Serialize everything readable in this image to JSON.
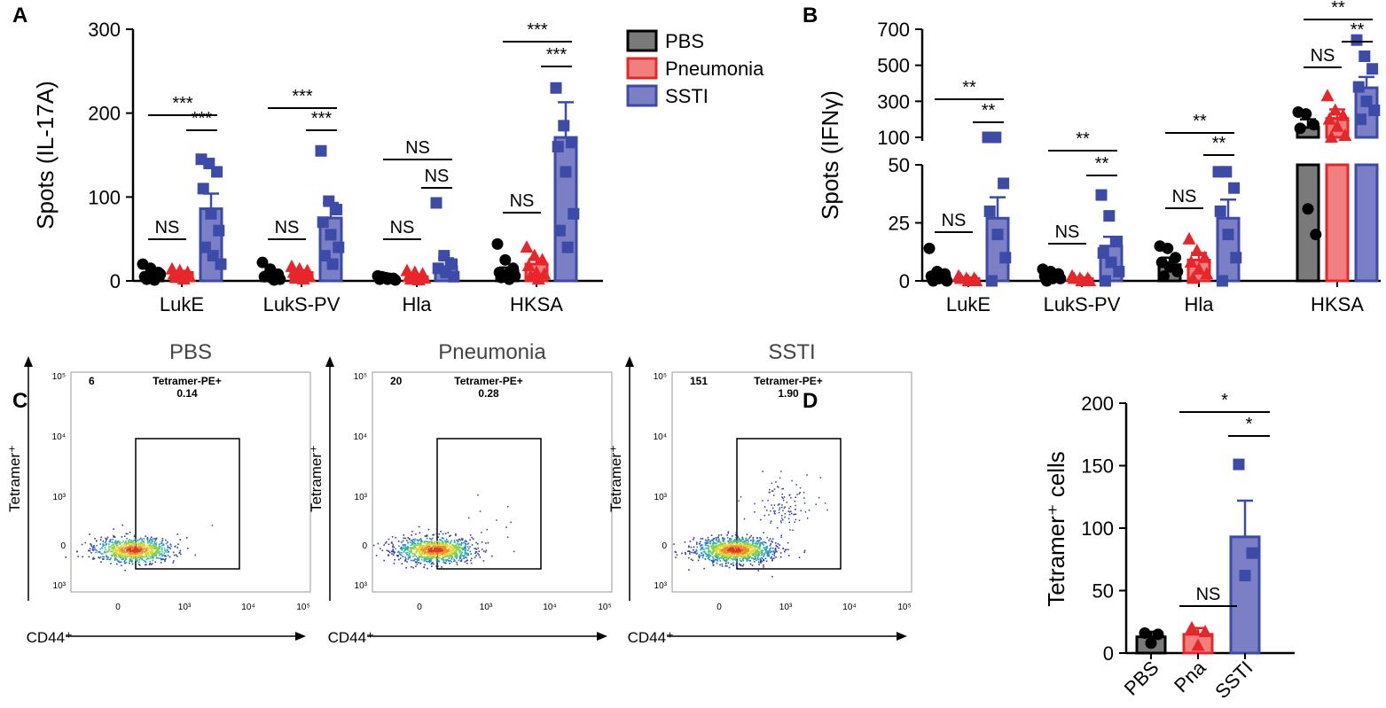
{
  "colors": {
    "pbs": "#000000",
    "pbs_fill": "#7a7a7a",
    "pneumonia": "#e8262a",
    "pneumonia_fill": "#f08080",
    "sstI": "#3c4aa8",
    "ssti_fill": "#7b7fc6",
    "axis": "#000000"
  },
  "legend": [
    "PBS",
    "Pneumonia",
    "SSTI"
  ],
  "chart_data": [
    {
      "panel": "A",
      "type": "bar",
      "ylabel": "Spots (IL-17A)",
      "ylim": [
        0,
        300
      ],
      "yticks": [
        "0",
        "100",
        "200",
        "300"
      ],
      "categories": [
        "LukE",
        "LukS-PV",
        "Hla",
        "HKSA"
      ],
      "series": [
        {
          "name": "PBS",
          "values": [
            5,
            5,
            3,
            12
          ],
          "sem": [
            2,
            2,
            1,
            4
          ],
          "points": [
            [
              20,
              15,
              10,
              5,
              3,
              8,
              2,
              1
            ],
            [
              22,
              14,
              8,
              5,
              3,
              2,
              6,
              1
            ],
            [
              6,
              4,
              3,
              2,
              2,
              1,
              5,
              3
            ],
            [
              44,
              25,
              15,
              10,
              8,
              6,
              4,
              2
            ]
          ]
        },
        {
          "name": "Pneumonia",
          "values": [
            10,
            10,
            5,
            20
          ],
          "sem": [
            2,
            3,
            2,
            6
          ],
          "points": [
            [
              14,
              12,
              10,
              8,
              6,
              5,
              4,
              2
            ],
            [
              17,
              14,
              12,
              10,
              8,
              5,
              3,
              2
            ],
            [
              12,
              10,
              8,
              5,
              4,
              3,
              2,
              1
            ],
            [
              40,
              30,
              25,
              18,
              10,
              8,
              5,
              2
            ]
          ]
        },
        {
          "name": "SSTI",
          "values": [
            86,
            75,
            17,
            171
          ],
          "sem": [
            18,
            18,
            10,
            42
          ],
          "points": [
            [
              145,
              140,
              130,
              110,
              80,
              60,
              40,
              30,
              20
            ],
            [
              155,
              95,
              85,
              70,
              55,
              40,
              30,
              20
            ],
            [
              93,
              30,
              20,
              15,
              10,
              5
            ],
            [
              230,
              185,
              165,
              160,
              130,
              80,
              60,
              40
            ]
          ]
        }
      ],
      "significance": [
        {
          "label": "NS",
          "group": 0,
          "pair": "PBS-Pneumonia"
        },
        {
          "label": "***",
          "group": 0,
          "pair": "PBS-SSTI"
        },
        {
          "label": "***",
          "group": 0,
          "pair": "Pneumonia-SSTI"
        },
        {
          "label": "NS",
          "group": 1,
          "pair": "PBS-Pneumonia"
        },
        {
          "label": "***",
          "group": 1,
          "pair": "PBS-SSTI"
        },
        {
          "label": "***",
          "group": 1,
          "pair": "Pneumonia-SSTI"
        },
        {
          "label": "NS",
          "group": 2,
          "pair": "PBS-Pneumonia"
        },
        {
          "label": "NS",
          "group": 2,
          "pair": "PBS-SSTI"
        },
        {
          "label": "NS",
          "group": 2,
          "pair": "Pneumonia-SSTI"
        },
        {
          "label": "NS",
          "group": 3,
          "pair": "PBS-Pneumonia"
        },
        {
          "label": "***",
          "group": 3,
          "pair": "PBS-SSTI"
        },
        {
          "label": "***",
          "group": 3,
          "pair": "Pneumonia-SSTI"
        }
      ]
    },
    {
      "panel": "B",
      "type": "bar",
      "ylabel": "Spots (IFNγ)",
      "axis_break": true,
      "lower_ylim": [
        0,
        50
      ],
      "upper_ylim": [
        100,
        700
      ],
      "lower_yticks": [
        "0",
        "25",
        "50"
      ],
      "upper_yticks": [
        "100",
        "300",
        "500",
        "700"
      ],
      "categories": [
        "LukE",
        "LukS-PV",
        "Hla",
        "HKSA"
      ],
      "series": [
        {
          "name": "PBS",
          "values": [
            2,
            2,
            7,
            155
          ],
          "sem": [
            2,
            1,
            3,
            45
          ],
          "points": [
            [
              14,
              4,
              3,
              2,
              1,
              0,
              0
            ],
            [
              5,
              4,
              3,
              2,
              1,
              1,
              0
            ],
            [
              15,
              14,
              10,
              8,
              6,
              4,
              2
            ],
            [
              240,
              230,
              170,
              150,
              31,
              20
            ]
          ]
        },
        {
          "name": "Pneumonia",
          "values": [
            1,
            1,
            9,
            205
          ],
          "sem": [
            0.5,
            0.5,
            3,
            50
          ],
          "points": [
            [
              2,
              1,
              1,
              1,
              0,
              0
            ],
            [
              2,
              1,
              1,
              1,
              0,
              0
            ],
            [
              18,
              13,
              10,
              8,
              5,
              3,
              1
            ],
            [
              330,
              250,
              220,
              200,
              160,
              110,
              80
            ]
          ]
        },
        {
          "name": "SSTI",
          "values": [
            27,
            15,
            27,
            375
          ],
          "sem": [
            9,
            4,
            8,
            60
          ],
          "points": [
            [
              62,
              61,
              42,
              30,
              20,
              10,
              0
            ],
            [
              37,
              28,
              17,
              12,
              8,
              4,
              0
            ],
            [
              47,
              47,
              40,
              30,
              20,
              10,
              0
            ],
            [
              640,
              550,
              480,
              380,
              300,
              250,
              200
            ]
          ]
        }
      ],
      "significance": [
        {
          "label": "NS",
          "group": 0,
          "pair": "PBS-Pneumonia"
        },
        {
          "label": "**",
          "group": 0,
          "pair": "PBS-SSTI"
        },
        {
          "label": "**",
          "group": 0,
          "pair": "Pneumonia-SSTI"
        },
        {
          "label": "NS",
          "group": 1,
          "pair": "PBS-Pneumonia"
        },
        {
          "label": "**",
          "group": 1,
          "pair": "PBS-SSTI"
        },
        {
          "label": "**",
          "group": 1,
          "pair": "Pneumonia-SSTI"
        },
        {
          "label": "NS",
          "group": 2,
          "pair": "PBS-Pneumonia"
        },
        {
          "label": "**",
          "group": 2,
          "pair": "PBS-SSTI"
        },
        {
          "label": "**",
          "group": 2,
          "pair": "Pneumonia-SSTI"
        },
        {
          "label": "NS",
          "group": 3,
          "pair": "PBS-Pneumonia"
        },
        {
          "label": "**",
          "group": 3,
          "pair": "PBS-SSTI"
        },
        {
          "label": "**",
          "group": 3,
          "pair": "Pneumonia-SSTI"
        }
      ]
    },
    {
      "panel": "C",
      "type": "scatter",
      "xlabel": "CD44⁺",
      "ylabel": "Tetramer⁺",
      "x_ticks": [
        "0",
        "10³",
        "10⁴",
        "10⁵"
      ],
      "y_ticks": [
        "10⁵",
        "10⁴",
        "10³",
        "0",
        "10³"
      ],
      "gate_label": "Tetramer-PE+",
      "plots": [
        {
          "title": "PBS",
          "count": "6",
          "gate_percent": "0.14"
        },
        {
          "title": "Pneumonia",
          "count": "20",
          "gate_percent": "0.28"
        },
        {
          "title": "SSTI",
          "count": "151",
          "gate_percent": "1.90"
        }
      ]
    },
    {
      "panel": "D",
      "type": "bar",
      "ylabel": "Tetramer⁺ cells",
      "ylim": [
        0,
        200
      ],
      "yticks": [
        "0",
        "50",
        "100",
        "150",
        "200"
      ],
      "categories": [
        "PBS",
        "Pna",
        "SSTI"
      ],
      "values": [
        13,
        15,
        93
      ],
      "sem": [
        4,
        5,
        29
      ],
      "points": [
        [
          16,
          15,
          8
        ],
        [
          20,
          17,
          6
        ],
        [
          151,
          80,
          62
        ]
      ],
      "significance": [
        {
          "label": "NS",
          "pair": "PBS-Pna"
        },
        {
          "label": "*",
          "pair": "PBS-SSTI"
        },
        {
          "label": "*",
          "pair": "Pna-SSTI"
        }
      ]
    }
  ],
  "panel_letters": [
    "A",
    "B",
    "C",
    "D"
  ]
}
